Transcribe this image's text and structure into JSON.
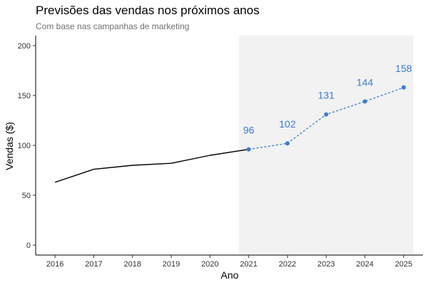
{
  "chart_data": {
    "type": "line",
    "title": "Previsões das vendas nos próximos anos",
    "subtitle": "Com base nas campanhas de marketing",
    "xlabel": "Ano",
    "ylabel": "Vendas ($)",
    "xlim": [
      2015.5,
      2025.5
    ],
    "ylim": [
      -10,
      210
    ],
    "x_ticks": [
      2016,
      2017,
      2018,
      2019,
      2020,
      2021,
      2022,
      2023,
      2024,
      2025
    ],
    "y_ticks": [
      0,
      50,
      100,
      150,
      200
    ],
    "grid": false,
    "highlight_range": [
      2020.75,
      2025.25
    ],
    "series": [
      {
        "style": "solid",
        "x": [
          2016,
          2017,
          2018,
          2019,
          2020,
          2021
        ],
        "values": [
          63,
          76,
          80,
          82,
          90,
          96
        ]
      },
      {
        "style": "dashed",
        "x": [
          2021,
          2022,
          2023,
          2024,
          2025
        ],
        "values": [
          96,
          102,
          131,
          144,
          158
        ],
        "data_labels": [
          "96",
          "102",
          "131",
          "144",
          "158"
        ]
      }
    ],
    "colors": {
      "actual": "#000000",
      "forecast": "#3a7bd5",
      "highlight": "#f2f2f2"
    }
  }
}
